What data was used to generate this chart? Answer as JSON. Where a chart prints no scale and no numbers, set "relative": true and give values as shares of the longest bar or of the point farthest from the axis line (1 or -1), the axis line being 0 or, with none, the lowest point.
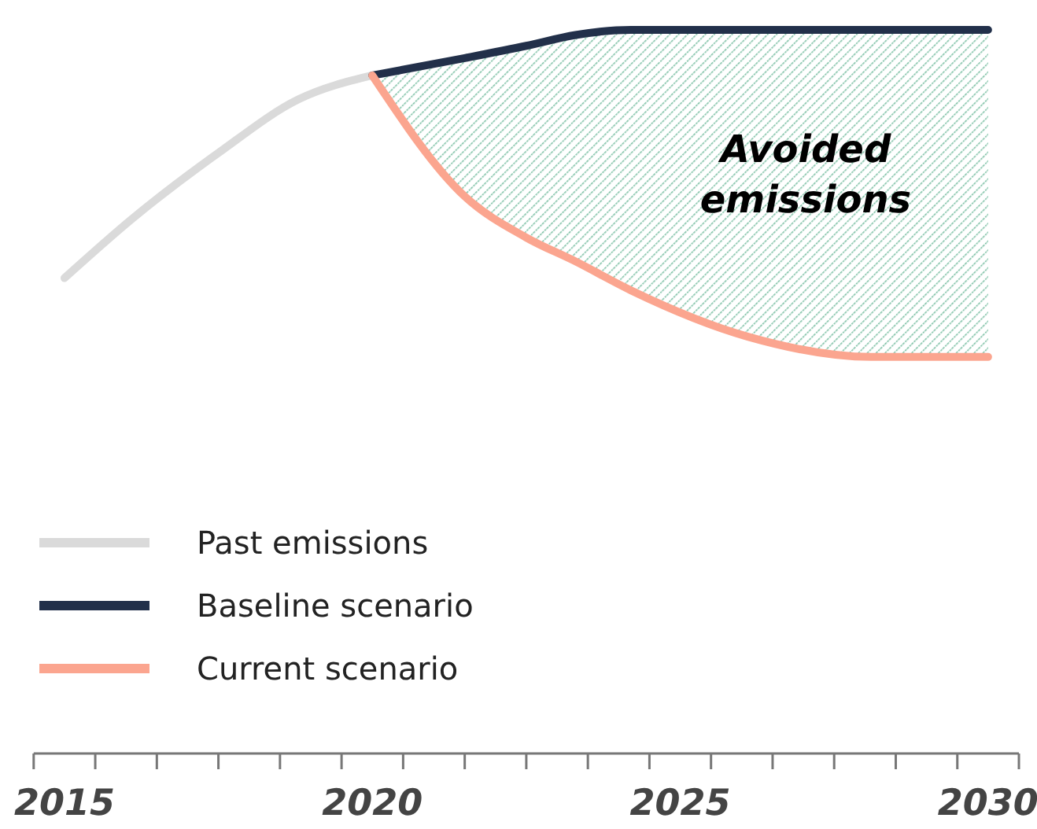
{
  "chart_data": {
    "type": "line",
    "relative": true,
    "xlim": [
      2014.5,
      2030.5
    ],
    "xticks": [
      {
        "value": 2014.5,
        "label": null
      },
      {
        "value": 2015,
        "label": "2015"
      },
      {
        "value": 2015.5,
        "label": null
      },
      {
        "value": 2016.5,
        "label": null
      },
      {
        "value": 2017.5,
        "label": null
      },
      {
        "value": 2018.5,
        "label": null
      },
      {
        "value": 2019.5,
        "label": null
      },
      {
        "value": 2020,
        "label": "2020"
      },
      {
        "value": 2020.5,
        "label": null
      },
      {
        "value": 2021.5,
        "label": null
      },
      {
        "value": 2022.5,
        "label": null
      },
      {
        "value": 2023.5,
        "label": null
      },
      {
        "value": 2024.5,
        "label": null
      },
      {
        "value": 2025,
        "label": "2025"
      },
      {
        "value": 2025.5,
        "label": null
      },
      {
        "value": 2026.5,
        "label": null
      },
      {
        "value": 2027.5,
        "label": null
      },
      {
        "value": 2028.5,
        "label": null
      },
      {
        "value": 2029.5,
        "label": null
      },
      {
        "value": 2030,
        "label": "2030"
      },
      {
        "value": 2030.5,
        "label": null
      }
    ],
    "series": [
      {
        "name": "Past emissions",
        "color": "#dadada",
        "x": [
          2015,
          2016.1,
          2017.5,
          2018.8,
          2020
        ],
        "values": [
          0.657,
          0.739,
          0.83,
          0.904,
          0.937
        ]
      },
      {
        "name": "Baseline scenario",
        "color": "#22304a",
        "x": [
          2020,
          2021.5,
          2022.5,
          2023.3,
          2024.2,
          2026.1,
          2028.1,
          2030
        ],
        "values": [
          0.937,
          0.961,
          0.978,
          0.993,
          1,
          1,
          1,
          1
        ],
        "lower": [
          0.937,
          0.77,
          0.713,
          0.68,
          0.64,
          0.576,
          0.548,
          0.548
        ],
        "upper": [
          0.937,
          0.961,
          0.978,
          0.993,
          1,
          1,
          1,
          1
        ]
      },
      {
        "name": "Current scenario",
        "color": "#fba58f",
        "x": [
          2020,
          2021.5,
          2022.5,
          2023.3,
          2024.2,
          2026.1,
          2028.1,
          2030
        ],
        "values": [
          0.937,
          0.77,
          0.713,
          0.68,
          0.64,
          0.576,
          0.548,
          0.548
        ]
      }
    ],
    "annotations": [
      "Avoided emissions"
    ],
    "legend": "bottom left",
    "grid": false,
    "marker": "none",
    "line_style": "solid"
  }
}
